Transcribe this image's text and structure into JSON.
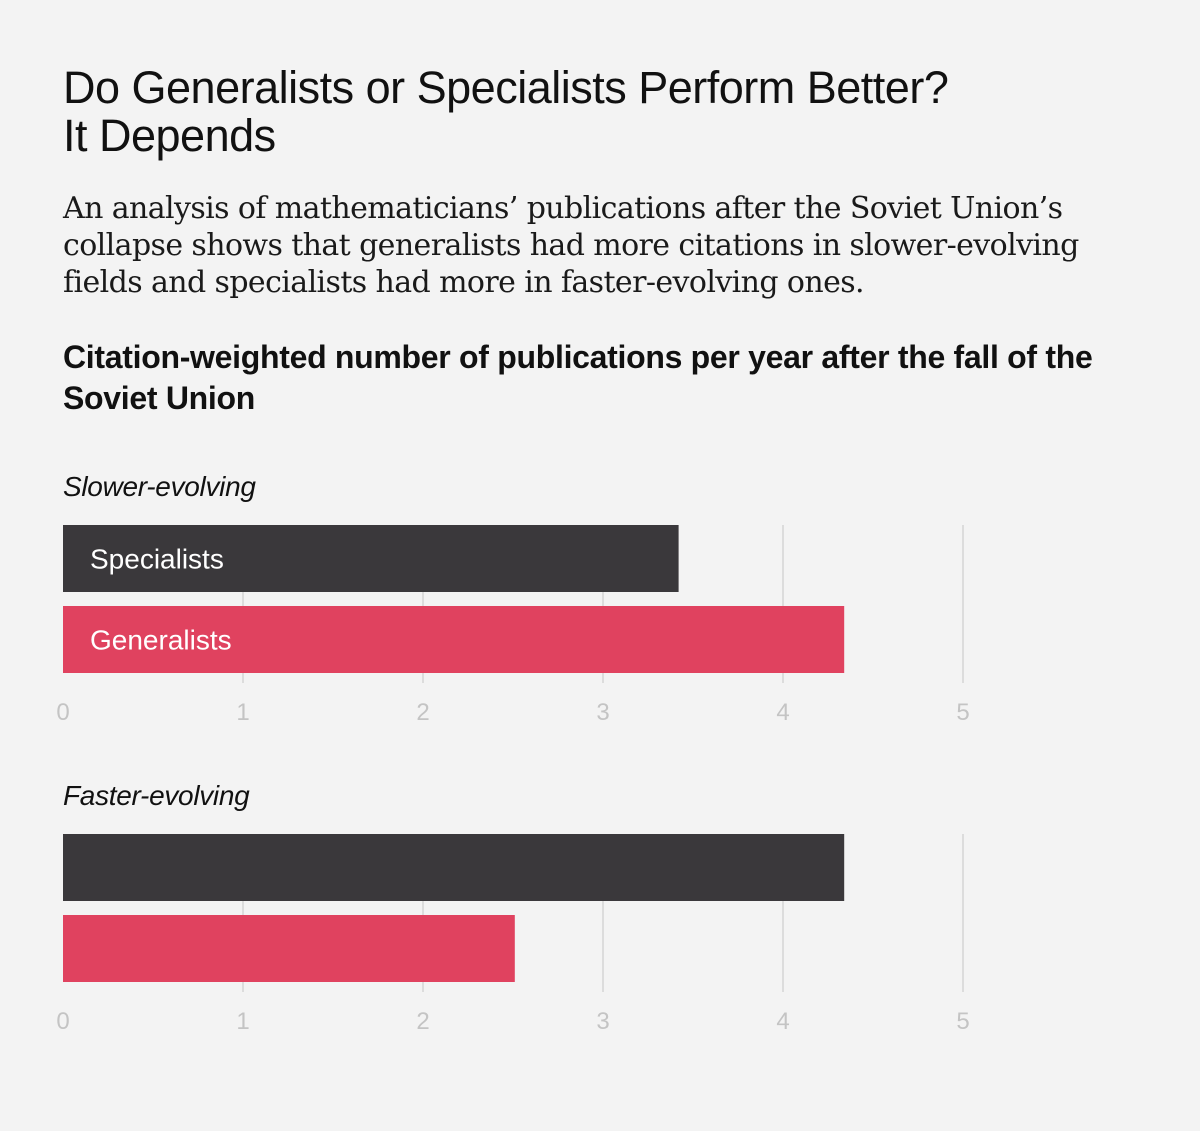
{
  "header": {
    "title_line1": "Do Generalists or Specialists Perform Better?",
    "title_line2": "It Depends",
    "subtitle": "An analysis of mathematicians’ publications after the Soviet Union’s collapse shows that generalists had more citations in slower-evolving fields and specialists had more in faster-evolving ones.",
    "chart_title": "Citation-weighted number of publications per year after the fall of the Soviet Union"
  },
  "colors": {
    "background": "#f3f3f3",
    "specialists": "#3a383b",
    "generalists": "#e0425f",
    "grid": "#d4d4d4",
    "tick": "#c4c4c4",
    "bar_label": "#ffffff"
  },
  "chart_data": [
    {
      "type": "bar",
      "orientation": "horizontal",
      "panel_label": "Slower-evolving",
      "categories": [
        "Specialists",
        "Generalists"
      ],
      "show_category_labels": true,
      "values": [
        3.42,
        4.34
      ],
      "xlim": [
        0,
        5
      ],
      "xticks": [
        "0",
        "1",
        "2",
        "3",
        "4",
        "5"
      ],
      "grid": true
    },
    {
      "type": "bar",
      "orientation": "horizontal",
      "panel_label": "Faster-evolving",
      "categories": [
        "Specialists",
        "Generalists"
      ],
      "show_category_labels": false,
      "values": [
        4.34,
        2.51
      ],
      "xlim": [
        0,
        5
      ],
      "xticks": [
        "0",
        "1",
        "2",
        "3",
        "4",
        "5"
      ],
      "grid": true
    }
  ]
}
